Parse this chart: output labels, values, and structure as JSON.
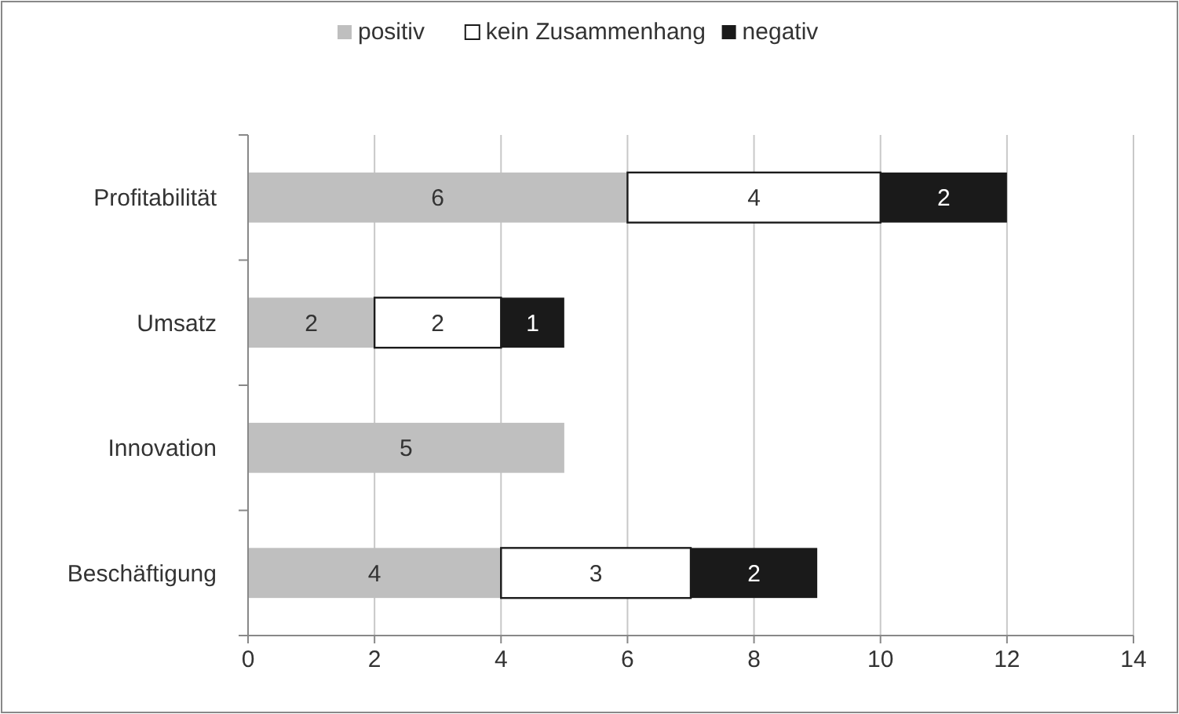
{
  "chart_data": {
    "type": "bar",
    "orientation": "horizontal",
    "stacked": true,
    "categories": [
      "Profitabilität",
      "Umsatz",
      "Innovation",
      "Beschäftigung"
    ],
    "series": [
      {
        "name": "positiv",
        "color": "#bfbfbf",
        "values": [
          6,
          2,
          5,
          4
        ],
        "value_labels": [
          "6",
          "2",
          "5",
          "4"
        ]
      },
      {
        "name": "kein Zusammenhang",
        "color": "#ffffff",
        "values": [
          4,
          2,
          0,
          3
        ],
        "value_labels": [
          "4",
          "2",
          null,
          "3"
        ]
      },
      {
        "name": "negativ",
        "color": "#1a1a1a",
        "values": [
          2,
          1,
          0,
          2
        ],
        "value_labels": [
          "2",
          "1",
          null,
          "2"
        ]
      }
    ],
    "xlim": [
      0,
      14
    ],
    "xticks": [
      0,
      2,
      4,
      6,
      8,
      10,
      12,
      14
    ],
    "grid": "x",
    "legend": "top"
  }
}
